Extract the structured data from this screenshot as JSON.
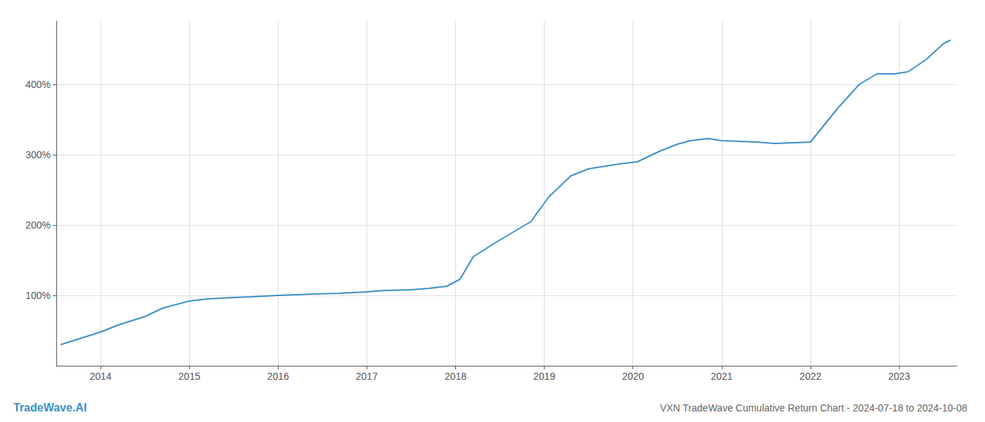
{
  "chart_data": {
    "type": "line",
    "title": "VXN TradeWave Cumulative Return Chart - 2024-07-18 to 2024-10-08",
    "annotations": [
      "TradeWave.AI"
    ],
    "x": [
      2013.55,
      2013.75,
      2014.0,
      2014.2,
      2014.5,
      2014.7,
      2015.0,
      2015.2,
      2015.5,
      2015.7,
      2016.0,
      2016.2,
      2016.4,
      2016.7,
      2017.0,
      2017.2,
      2017.5,
      2017.7,
      2017.9,
      2018.05,
      2018.2,
      2018.45,
      2018.65,
      2018.85,
      2019.05,
      2019.3,
      2019.5,
      2019.65,
      2019.85,
      2020.05,
      2020.3,
      2020.5,
      2020.65,
      2020.85,
      2021.0,
      2021.2,
      2021.4,
      2021.6,
      2021.8,
      2022.0,
      2022.3,
      2022.55,
      2022.75,
      2022.95,
      2023.1,
      2023.3,
      2023.5,
      2023.58
    ],
    "values": [
      30,
      38,
      48,
      58,
      70,
      82,
      92,
      95,
      97,
      98,
      100,
      101,
      102,
      103,
      105,
      107,
      108,
      110,
      113,
      123,
      155,
      175,
      190,
      205,
      240,
      270,
      280,
      283,
      287,
      290,
      305,
      315,
      320,
      323,
      320,
      319,
      318,
      316,
      317,
      318,
      365,
      400,
      415,
      415,
      418,
      435,
      458,
      463
    ],
    "color": "#3a8fc7",
    "xlim": [
      2013.5,
      2023.65
    ],
    "xticks": [
      2014,
      2015,
      2016,
      2017,
      2018,
      2019,
      2020,
      2021,
      2022,
      2023
    ],
    "ylim": [
      0,
      490
    ],
    "yticks": [
      {
        "value": 100,
        "label": "100%"
      },
      {
        "value": 200,
        "label": "200%"
      },
      {
        "value": 300,
        "label": "300%"
      },
      {
        "value": 400,
        "label": "400%"
      }
    ],
    "grid": true
  }
}
